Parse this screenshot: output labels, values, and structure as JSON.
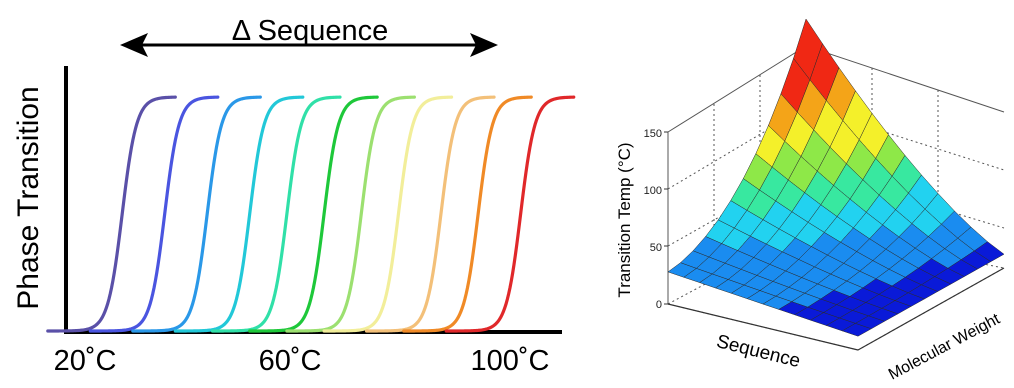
{
  "chart_data": [
    {
      "type": "line",
      "title": "Δ Sequence",
      "ylabel": "Phase Transition",
      "xlabel": "",
      "x_ticks": [
        "20˚C",
        "60˚C",
        "100˚C"
      ],
      "xlim": [
        20,
        100
      ],
      "ylim": [
        0,
        1
      ],
      "grid": false,
      "legend": "none",
      "arrow": "double-headed",
      "series": [
        {
          "midpoint": 27,
          "color": "#5a50a8"
        },
        {
          "midpoint": 35,
          "color": "#4a55e0"
        },
        {
          "midpoint": 43,
          "color": "#2a98e8"
        },
        {
          "midpoint": 51,
          "color": "#22c8d8"
        },
        {
          "midpoint": 58,
          "color": "#30e0a8"
        },
        {
          "midpoint": 65,
          "color": "#1ec83a"
        },
        {
          "midpoint": 72,
          "color": "#9ce070"
        },
        {
          "midpoint": 79,
          "color": "#f2ee9a"
        },
        {
          "midpoint": 87,
          "color": "#f3c079"
        },
        {
          "midpoint": 94,
          "color": "#f08a26"
        },
        {
          "midpoint": 102,
          "color": "#e0282a"
        }
      ]
    },
    {
      "type": "surface",
      "title": "",
      "zlabel": "Transition Temp (°C)",
      "xlabel": "Sequence",
      "ylabel": "Molecular Weight",
      "z_ticks": [
        "0",
        "50",
        "100",
        "150"
      ],
      "zlim": [
        0,
        150
      ],
      "colormap": [
        "#0a1ad8",
        "#1a8cf0",
        "#22d2f0",
        "#38e8a0",
        "#8ee848",
        "#f4f02a",
        "#f4a418",
        "#f02814"
      ],
      "grid": true
    }
  ]
}
